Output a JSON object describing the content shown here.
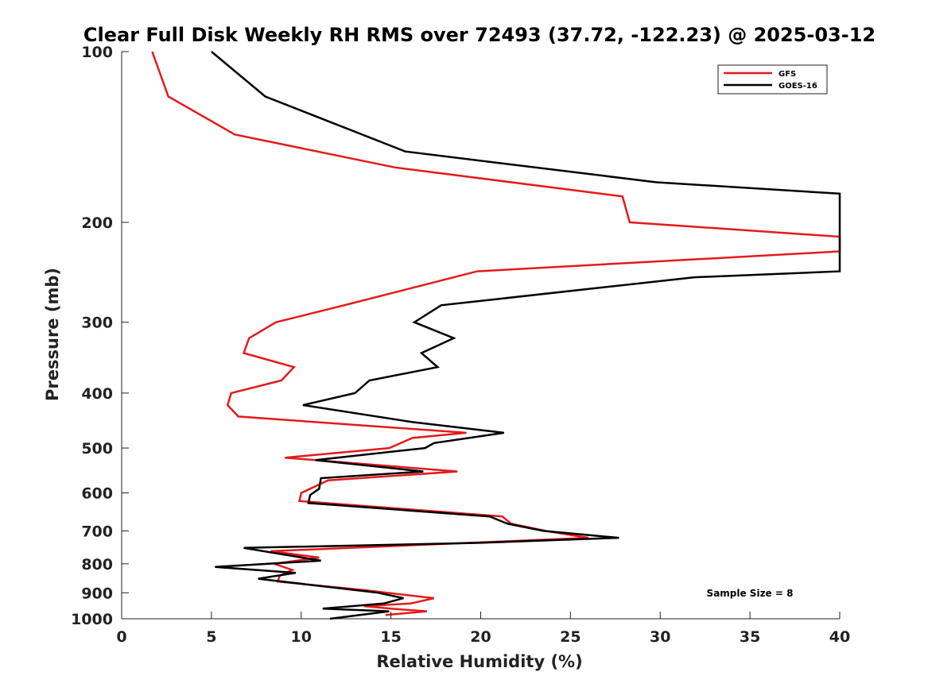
{
  "chart_data": {
    "type": "line",
    "title": "Clear Full Disk Weekly RH RMS over 72493 (37.72, -122.23) @ 2025-03-12",
    "xlabel": "Relative Humidity (%)",
    "ylabel": "Pressure (mb)",
    "xlim": [
      0,
      40
    ],
    "ylim": [
      100,
      1000
    ],
    "y_scale": "log",
    "y_inverted": true,
    "x_ticks": [
      0,
      5,
      10,
      15,
      20,
      25,
      30,
      35,
      40
    ],
    "y_ticks": [
      100,
      200,
      300,
      400,
      500,
      600,
      700,
      800,
      900,
      1000
    ],
    "grid": false,
    "legend_position": "top-right",
    "annotation": "Sample Size = 8",
    "series": [
      {
        "name": "GFS",
        "color": "#e41a1c",
        "points": [
          [
            1.7,
            100
          ],
          [
            2.6,
            120
          ],
          [
            6.3,
            140
          ],
          [
            15.2,
            160
          ],
          [
            27.9,
            180
          ],
          [
            28.3,
            200
          ],
          [
            40,
            212
          ],
          [
            40,
            225
          ],
          [
            19.8,
            244
          ],
          [
            12.8,
            278
          ],
          [
            8.6,
            300
          ],
          [
            7.1,
            320
          ],
          [
            6.8,
            340
          ],
          [
            9.6,
            360
          ],
          [
            8.9,
            380
          ],
          [
            6.1,
            400
          ],
          [
            5.9,
            420
          ],
          [
            6.5,
            440
          ],
          [
            19.2,
            470
          ],
          [
            16.2,
            480
          ],
          [
            14.9,
            500
          ],
          [
            9.1,
            520
          ],
          [
            18.7,
            550
          ],
          [
            11.5,
            570
          ],
          [
            10.0,
            600
          ],
          [
            9.9,
            620
          ],
          [
            21.2,
            660
          ],
          [
            21.7,
            680
          ],
          [
            23.6,
            700
          ],
          [
            26.0,
            720
          ],
          [
            8.3,
            760
          ],
          [
            11.0,
            780
          ],
          [
            8.5,
            800
          ],
          [
            9.5,
            820
          ],
          [
            8.8,
            840
          ],
          [
            8.7,
            860
          ],
          [
            13.5,
            890
          ],
          [
            17.4,
            920
          ],
          [
            16.1,
            940
          ],
          [
            13.5,
            950
          ],
          [
            15.0,
            960
          ],
          [
            17.0,
            970
          ],
          [
            14.7,
            985
          ]
        ]
      },
      {
        "name": "GOES-16",
        "color": "#000000",
        "points": [
          [
            5.0,
            100
          ],
          [
            8.0,
            120
          ],
          [
            15.8,
            150
          ],
          [
            29.8,
            170
          ],
          [
            40,
            178
          ],
          [
            40,
            244
          ],
          [
            31.9,
            250
          ],
          [
            17.8,
            280
          ],
          [
            16.3,
            300
          ],
          [
            18.5,
            320
          ],
          [
            16.7,
            340
          ],
          [
            17.6,
            360
          ],
          [
            13.8,
            380
          ],
          [
            13.0,
            400
          ],
          [
            10.1,
            420
          ],
          [
            16.2,
            450
          ],
          [
            21.3,
            470
          ],
          [
            17.4,
            490
          ],
          [
            16.9,
            500
          ],
          [
            10.8,
            525
          ],
          [
            16.8,
            550
          ],
          [
            11.1,
            565
          ],
          [
            11.0,
            590
          ],
          [
            10.5,
            605
          ],
          [
            10.4,
            625
          ],
          [
            20.5,
            660
          ],
          [
            21.5,
            680
          ],
          [
            23.5,
            700
          ],
          [
            27.7,
            720
          ],
          [
            19.8,
            735
          ],
          [
            6.8,
            750
          ],
          [
            11.1,
            790
          ],
          [
            5.2,
            810
          ],
          [
            9.7,
            830
          ],
          [
            7.6,
            850
          ],
          [
            14.3,
            900
          ],
          [
            15.7,
            920
          ],
          [
            14.6,
            940
          ],
          [
            11.2,
            960
          ],
          [
            14.9,
            970
          ],
          [
            11.6,
            1000
          ]
        ]
      }
    ]
  }
}
